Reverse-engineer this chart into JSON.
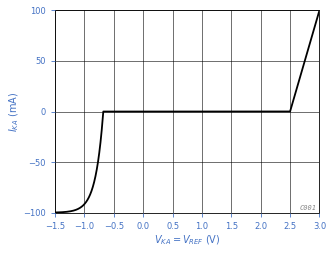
{
  "title": "",
  "xlabel": "$V_{KA} = V_{REF}$ (V)",
  "ylabel": "$I_{KA}$ (mA)",
  "xlim": [
    -1.5,
    3.0
  ],
  "ylim": [
    -100,
    100
  ],
  "xticks": [
    -1.5,
    -1.0,
    -0.5,
    0,
    0.5,
    1.0,
    1.5,
    2.0,
    2.5,
    3.0
  ],
  "yticks": [
    -100,
    -50,
    0,
    50,
    100
  ],
  "grid_color": "#000000",
  "line_color": "#000000",
  "background_color": "#ffffff",
  "watermark": "C001",
  "label_color": "#4472C4",
  "tick_label_color": "#4472C4",
  "curve_v_knee": -0.68,
  "curve_scale": 0.13,
  "curve_I_sat": -100.0,
  "curve_v_flat_start": -0.48,
  "curve_v_rise": 2.5,
  "curve_v_end": 3.0,
  "curve_I_rise": 100.0
}
